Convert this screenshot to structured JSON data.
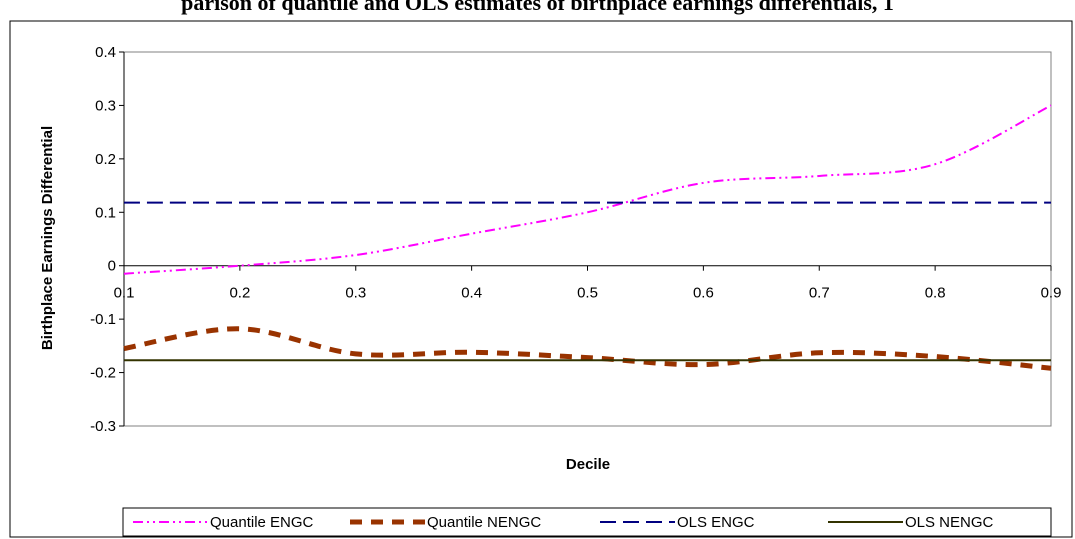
{
  "chart_data": {
    "type": "line",
    "title": "parison of quantile and OLS estimates of birthplace earnings differentials, 1",
    "xlabel": "Decile",
    "ylabel": "Birthplace Earnings Differential",
    "x": [
      0.1,
      0.2,
      0.3,
      0.4,
      0.5,
      0.6,
      0.7,
      0.8,
      0.9
    ],
    "x_tick_labels": [
      "0.1",
      "0.2",
      "0.3",
      "0.4",
      "0.5",
      "0.6",
      "0.7",
      "0.8",
      "0.9"
    ],
    "xlim": [
      0.1,
      0.9
    ],
    "ylim": [
      -0.3,
      0.4
    ],
    "y_ticks": [
      0.4,
      0.3,
      0.2,
      0.1,
      0,
      -0.1,
      -0.2,
      -0.3
    ],
    "y_tick_labels": [
      "0.4",
      "0.3",
      "0.2",
      "0.1",
      "0",
      "-0.1",
      "-0.2",
      "-0.3"
    ],
    "grid": false,
    "legend_position": "bottom",
    "series": [
      {
        "name": "Quantile ENGC",
        "values": [
          -0.015,
          0.0,
          0.02,
          0.06,
          0.1,
          0.155,
          0.168,
          0.19,
          0.3
        ],
        "color": "#ff00ff",
        "style": "dash-dot-dot"
      },
      {
        "name": "Quantile NENGC",
        "values": [
          -0.155,
          -0.118,
          -0.165,
          -0.162,
          -0.172,
          -0.185,
          -0.163,
          -0.17,
          -0.192
        ],
        "color": "#993300",
        "style": "thick-dash"
      },
      {
        "name": "OLS ENGC",
        "values": [
          0.118,
          0.118,
          0.118,
          0.118,
          0.118,
          0.118,
          0.118,
          0.118,
          0.118
        ],
        "color": "#000080",
        "style": "long-dash"
      },
      {
        "name": "OLS NENGC",
        "values": [
          -0.177,
          -0.177,
          -0.177,
          -0.177,
          -0.177,
          -0.177,
          -0.177,
          -0.177,
          -0.177
        ],
        "color": "#333300",
        "style": "solid"
      }
    ]
  }
}
